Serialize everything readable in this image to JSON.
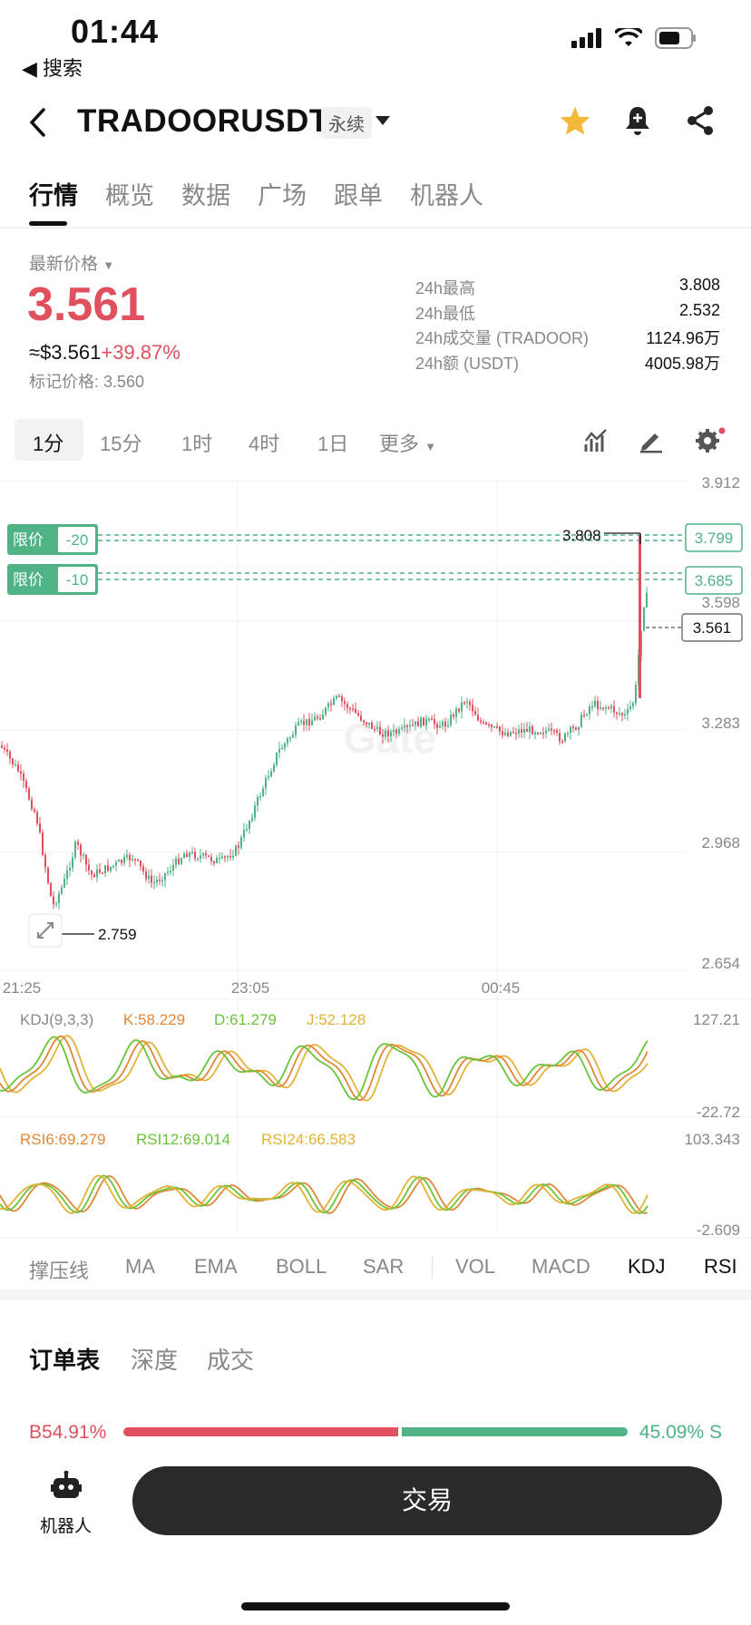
{
  "status_bar": {
    "time": "01:44",
    "back_app": "◀ 搜索"
  },
  "header": {
    "pair": "TRADOORUSDT",
    "contract_type": "永续"
  },
  "tabs": [
    "行情",
    "概览",
    "数据",
    "广场",
    "跟单",
    "机器人"
  ],
  "summary": {
    "latest_label": "最新价格",
    "price": "3.561",
    "usd_price": "≈$3.561",
    "change_pct": "+39.87%",
    "mark_price": "标记价格: 3.560",
    "stats": [
      {
        "label": "24h最高",
        "value": "3.808"
      },
      {
        "label": "24h最低",
        "value": "2.532"
      },
      {
        "label": "24h成交量 (TRADOOR)",
        "value": "1124.96万"
      },
      {
        "label": "24h额 (USDT)",
        "value": "4005.98万"
      }
    ]
  },
  "timeframes": [
    "1分",
    "15分",
    "1时",
    "4时",
    "1日",
    "更多"
  ],
  "chart": {
    "price_axis": [
      "3.912",
      "3.598",
      "3.283",
      "2.968",
      "2.654"
    ],
    "time_axis": [
      "21:25",
      "23:05",
      "00:45"
    ],
    "high_marker": "3.808",
    "low_marker": "2.759",
    "current_price": "3.561",
    "orders": [
      {
        "tag": "限价",
        "qty": "-20",
        "price": "3.799"
      },
      {
        "tag": "限价",
        "qty": "-10",
        "price": "3.685"
      }
    ],
    "watermark": "Gate"
  },
  "kdj": {
    "label": "KDJ(9,3,3)",
    "k": "K:58.229",
    "d": "D:61.279",
    "j": "J:52.128",
    "max": "127.21",
    "min": "-22.72"
  },
  "rsi": {
    "r6": "RSI6:69.279",
    "r12": "RSI12:69.014",
    "r24": "RSI24:66.583",
    "max": "103.343",
    "min": "-2.609"
  },
  "indicators": [
    "撑压线",
    "MA",
    "EMA",
    "BOLL",
    "SAR",
    "VOL",
    "MACD",
    "KDJ",
    "RSI"
  ],
  "orderbook_tabs": [
    "订单表",
    "深度",
    "成交"
  ],
  "buy_sell": {
    "buy_label": "B",
    "buy_pct": "54.91%",
    "sell_pct": "45.09%",
    "sell_label": "S",
    "buy_ratio": 0.5491
  },
  "bottom": {
    "robot_label": "机器人",
    "trade_label": "交易"
  },
  "colors": {
    "up": "#4fb386",
    "down": "#e0505e",
    "accent_star": "#f2b93b"
  }
}
